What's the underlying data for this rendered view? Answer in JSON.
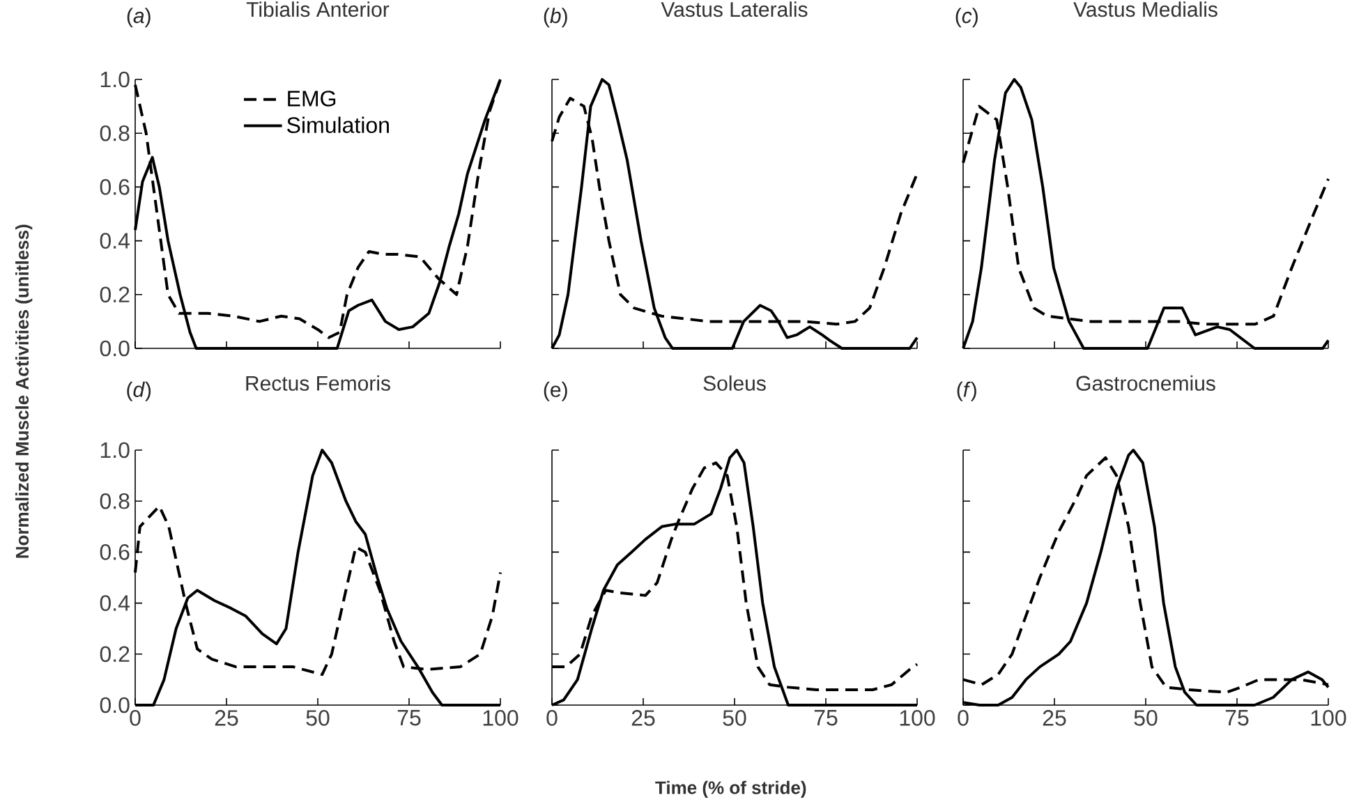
{
  "chart_data": [
    {
      "type": "line",
      "title": "Tibialis Anterior",
      "annotations": [
        "(*a*)"
      ],
      "ylabel": "Normalized Muscle Activities (unitless)",
      "legend": "top",
      "tick_labels": "y",
      "xlim": [
        0,
        100
      ],
      "ylim": [
        0,
        1
      ],
      "xticks": [
        0,
        25,
        50,
        75,
        100
      ],
      "yticks": [
        {
          "value": 0,
          "label": "0.0"
        },
        {
          "value": 0.2,
          "label": "0.2"
        },
        {
          "value": 0.4,
          "label": "0.4"
        },
        {
          "value": 0.6,
          "label": "0.6"
        },
        {
          "value": 0.8,
          "label": "0.8"
        },
        {
          "value": 1,
          "label": "1.0"
        }
      ],
      "series": [
        {
          "name": "EMG",
          "color": "#000000",
          "line_style": "dashed",
          "x": [
            0,
            3,
            5,
            7,
            9,
            12,
            20,
            27,
            34,
            40,
            45,
            50,
            53,
            56,
            58,
            61,
            64,
            68,
            72,
            78,
            83,
            88,
            91,
            94,
            97,
            100
          ],
          "values": [
            0.98,
            0.8,
            0.6,
            0.4,
            0.2,
            0.13,
            0.13,
            0.12,
            0.1,
            0.12,
            0.11,
            0.07,
            0.04,
            0.06,
            0.2,
            0.3,
            0.36,
            0.35,
            0.35,
            0.34,
            0.26,
            0.2,
            0.38,
            0.65,
            0.88,
            1.0
          ]
        },
        {
          "name": "Simulation",
          "color": "#000000",
          "line_style": "solid",
          "x": [
            0,
            2,
            4.7,
            6.6,
            9,
            12.3,
            15,
            16.7,
            30,
            45,
            55.3,
            58.5,
            61,
            64.8,
            68.5,
            72.2,
            76,
            80.4,
            83.5,
            86,
            88.6,
            91,
            95.8,
            100
          ],
          "values": [
            0.44,
            0.62,
            0.71,
            0.6,
            0.4,
            0.2,
            0.06,
            0,
            0,
            0,
            0,
            0.14,
            0.16,
            0.18,
            0.1,
            0.07,
            0.08,
            0.13,
            0.25,
            0.38,
            0.5,
            0.65,
            0.85,
            1.0
          ]
        }
      ]
    },
    {
      "type": "line",
      "title": "Vastus Lateralis",
      "annotations": [
        "(*b*)"
      ],
      "tick_labels": false,
      "xlim": [
        0,
        100
      ],
      "ylim": [
        0,
        1
      ],
      "xticks": [
        0,
        25,
        50,
        75,
        100
      ],
      "yticks": [
        {
          "value": 0,
          "label": null
        },
        {
          "value": 0.2,
          "label": null
        },
        {
          "value": 0.4,
          "label": null
        },
        {
          "value": 0.6,
          "label": null
        },
        {
          "value": 0.8,
          "label": null
        },
        {
          "value": 1,
          "label": null
        }
      ],
      "series": [
        {
          "color": "#000000",
          "line_style": "dashed",
          "x": [
            0,
            2,
            5,
            8.75,
            11,
            13,
            15.6,
            18.75,
            22.5,
            30,
            43,
            55,
            62,
            69,
            78,
            83,
            87,
            91,
            95.5,
            100
          ],
          "values": [
            0.77,
            0.86,
            0.93,
            0.9,
            0.78,
            0.6,
            0.4,
            0.2,
            0.15,
            0.12,
            0.1,
            0.1,
            0.1,
            0.1,
            0.09,
            0.1,
            0.15,
            0.3,
            0.5,
            0.65
          ]
        },
        {
          "color": "#000000",
          "line_style": "solid",
          "x": [
            0,
            2,
            4.4,
            8.1,
            10.6,
            13.75,
            15.6,
            18,
            20.6,
            24.4,
            28,
            31,
            33,
            49.4,
            52.5,
            57,
            60,
            62,
            64.4,
            67,
            70.6,
            74,
            76,
            79.4,
            98,
            100
          ],
          "values": [
            0,
            0.05,
            0.2,
            0.6,
            0.9,
            1.0,
            0.98,
            0.85,
            0.7,
            0.4,
            0.15,
            0.04,
            0,
            0,
            0.1,
            0.16,
            0.14,
            0.1,
            0.04,
            0.05,
            0.08,
            0.05,
            0.03,
            0,
            0,
            0.04
          ]
        }
      ]
    },
    {
      "type": "line",
      "title": "Vastus Medialis",
      "annotations": [
        "(*c*)"
      ],
      "tick_labels": false,
      "xlim": [
        0,
        100
      ],
      "ylim": [
        0,
        1
      ],
      "xticks": [
        0,
        25,
        50,
        75,
        100
      ],
      "yticks": [
        {
          "value": 0,
          "label": null
        },
        {
          "value": 0.2,
          "label": null
        },
        {
          "value": 0.4,
          "label": null
        },
        {
          "value": 0.6,
          "label": null
        },
        {
          "value": 0.8,
          "label": null
        },
        {
          "value": 1,
          "label": null
        }
      ],
      "series": [
        {
          "color": "#000000",
          "line_style": "dashed",
          "x": [
            0,
            4.4,
            9.2,
            12.2,
            15.2,
            19.4,
            23,
            35,
            59,
            66,
            80,
            85,
            90,
            96,
            100
          ],
          "values": [
            0.69,
            0.9,
            0.85,
            0.6,
            0.3,
            0.15,
            0.12,
            0.1,
            0.1,
            0.09,
            0.09,
            0.12,
            0.3,
            0.5,
            0.63
          ]
        },
        {
          "color": "#000000",
          "line_style": "solid",
          "x": [
            0,
            2.6,
            5,
            8.6,
            11.6,
            14,
            15.8,
            18.8,
            21.8,
            24.8,
            29,
            33,
            50.5,
            55,
            60,
            63.6,
            69.6,
            73,
            79.8,
            98.5,
            100
          ],
          "values": [
            0,
            0.1,
            0.3,
            0.7,
            0.95,
            1.0,
            0.97,
            0.85,
            0.6,
            0.3,
            0.1,
            0,
            0,
            0.15,
            0.15,
            0.05,
            0.08,
            0.07,
            0,
            0,
            0.03
          ]
        }
      ]
    },
    {
      "type": "line",
      "title": "Rectus Femoris",
      "annotations": [
        "(*d*)"
      ],
      "xlim": [
        0,
        100
      ],
      "ylim": [
        0,
        1
      ],
      "xticks": [
        0,
        25,
        50,
        75,
        100
      ],
      "yticks": [
        {
          "value": 0,
          "label": "0.0"
        },
        {
          "value": 0.2,
          "label": "0.2"
        },
        {
          "value": 0.4,
          "label": "0.4"
        },
        {
          "value": 0.6,
          "label": "0.6"
        },
        {
          "value": 0.8,
          "label": "0.8"
        },
        {
          "value": 1,
          "label": "1.0"
        }
      ],
      "series": [
        {
          "color": "#000000",
          "line_style": "dashed",
          "x": [
            0,
            1.3,
            6.6,
            9.2,
            13.8,
            17,
            21,
            27.6,
            35.4,
            43.3,
            51.2,
            53.8,
            57.7,
            60.4,
            63,
            67,
            70.9,
            73.5,
            80,
            89,
            94.5,
            97.8,
            100
          ],
          "values": [
            0.52,
            0.7,
            0.78,
            0.7,
            0.4,
            0.22,
            0.18,
            0.15,
            0.15,
            0.15,
            0.12,
            0.2,
            0.45,
            0.62,
            0.6,
            0.45,
            0.25,
            0.15,
            0.14,
            0.15,
            0.2,
            0.35,
            0.52
          ]
        },
        {
          "color": "#000000",
          "line_style": "solid",
          "x": [
            0,
            5,
            7.9,
            11.2,
            14.4,
            17,
            21.7,
            26.2,
            30.2,
            34.8,
            38.7,
            41.3,
            44.6,
            48.6,
            51.2,
            53.8,
            57.7,
            60.4,
            63,
            66.3,
            68.9,
            72.8,
            77.4,
            81.4,
            84,
            100
          ],
          "values": [
            0,
            0,
            0.1,
            0.3,
            0.42,
            0.45,
            0.41,
            0.38,
            0.35,
            0.28,
            0.24,
            0.3,
            0.6,
            0.9,
            1.0,
            0.95,
            0.8,
            0.72,
            0.67,
            0.5,
            0.38,
            0.25,
            0.15,
            0.05,
            0,
            0
          ]
        }
      ]
    },
    {
      "type": "line",
      "title": "Soleus",
      "annotations": [
        "(e)"
      ],
      "xlabel": "Time (% of stride)",
      "tick_labels": "x",
      "xlim": [
        0,
        100
      ],
      "ylim": [
        0,
        1
      ],
      "xticks": [
        0,
        25,
        50,
        75,
        100
      ],
      "yticks": [
        {
          "value": 0,
          "label": null
        },
        {
          "value": 0.2,
          "label": null
        },
        {
          "value": 0.4,
          "label": null
        },
        {
          "value": 0.6,
          "label": null
        },
        {
          "value": 0.8,
          "label": null
        },
        {
          "value": 1,
          "label": null
        }
      ],
      "series": [
        {
          "color": "#000000",
          "line_style": "dashed",
          "x": [
            0,
            3.8,
            7.7,
            10.9,
            14.7,
            18.6,
            25.6,
            28.8,
            32.7,
            34.6,
            38.5,
            41.7,
            44.9,
            48,
            50.6,
            53.2,
            56.4,
            59.6,
            64.7,
            72.4,
            87.8,
            93,
            98,
            100
          ],
          "values": [
            0.15,
            0.15,
            0.2,
            0.35,
            0.45,
            0.44,
            0.43,
            0.48,
            0.65,
            0.72,
            0.85,
            0.93,
            0.95,
            0.9,
            0.7,
            0.4,
            0.15,
            0.08,
            0.07,
            0.06,
            0.06,
            0.08,
            0.14,
            0.16
          ]
        },
        {
          "color": "#000000",
          "line_style": "solid",
          "x": [
            0,
            3.2,
            7,
            10.9,
            14.1,
            17.9,
            21.8,
            25.6,
            30.1,
            34,
            39,
            43.6,
            46.2,
            48.7,
            50.6,
            52.6,
            55.1,
            57.7,
            60.9,
            64.7,
            100
          ],
          "values": [
            0,
            0.02,
            0.1,
            0.3,
            0.45,
            0.55,
            0.6,
            0.65,
            0.7,
            0.71,
            0.71,
            0.75,
            0.85,
            0.97,
            1.0,
            0.95,
            0.7,
            0.4,
            0.15,
            0,
            0
          ]
        }
      ]
    },
    {
      "type": "line",
      "title": "Gastrocnemius",
      "annotations": [
        "(*f*)"
      ],
      "tick_labels": "x",
      "xlim": [
        0,
        100
      ],
      "ylim": [
        0,
        1
      ],
      "xticks": [
        0,
        25,
        50,
        75,
        100
      ],
      "yticks": [
        {
          "value": 0,
          "label": null
        },
        {
          "value": 0.2,
          "label": null
        },
        {
          "value": 0.4,
          "label": null
        },
        {
          "value": 0.6,
          "label": null
        },
        {
          "value": 0.8,
          "label": null
        },
        {
          "value": 1,
          "label": null
        }
      ],
      "series": [
        {
          "color": "#000000",
          "line_style": "dashed",
          "x": [
            0,
            5.1,
            9.6,
            13.4,
            17.2,
            21,
            26.2,
            31.3,
            33.8,
            39,
            42,
            45.3,
            48.5,
            51.7,
            55.6,
            62,
            72.2,
            76,
            81,
            87.5,
            92.6,
            100
          ],
          "values": [
            0.1,
            0.08,
            0.12,
            0.2,
            0.35,
            0.5,
            0.68,
            0.82,
            0.9,
            0.97,
            0.9,
            0.7,
            0.4,
            0.15,
            0.07,
            0.06,
            0.05,
            0.07,
            0.1,
            0.1,
            0.1,
            0.08
          ]
        },
        {
          "color": "#000000",
          "line_style": "solid",
          "x": [
            0,
            4.5,
            9.6,
            13.4,
            17.2,
            21,
            26.2,
            29.4,
            33.8,
            37.7,
            42,
            45.3,
            46.6,
            49.2,
            52.4,
            54.9,
            58.1,
            60.7,
            63.9,
            79.8,
            84.9,
            90,
            94.5,
            98.3,
            100
          ],
          "values": [
            0.01,
            0,
            0,
            0.03,
            0.1,
            0.15,
            0.2,
            0.25,
            0.4,
            0.6,
            0.85,
            0.98,
            1.0,
            0.95,
            0.7,
            0.4,
            0.15,
            0.05,
            0,
            0,
            0.03,
            0.1,
            0.13,
            0.1,
            0.07
          ]
        }
      ]
    }
  ]
}
